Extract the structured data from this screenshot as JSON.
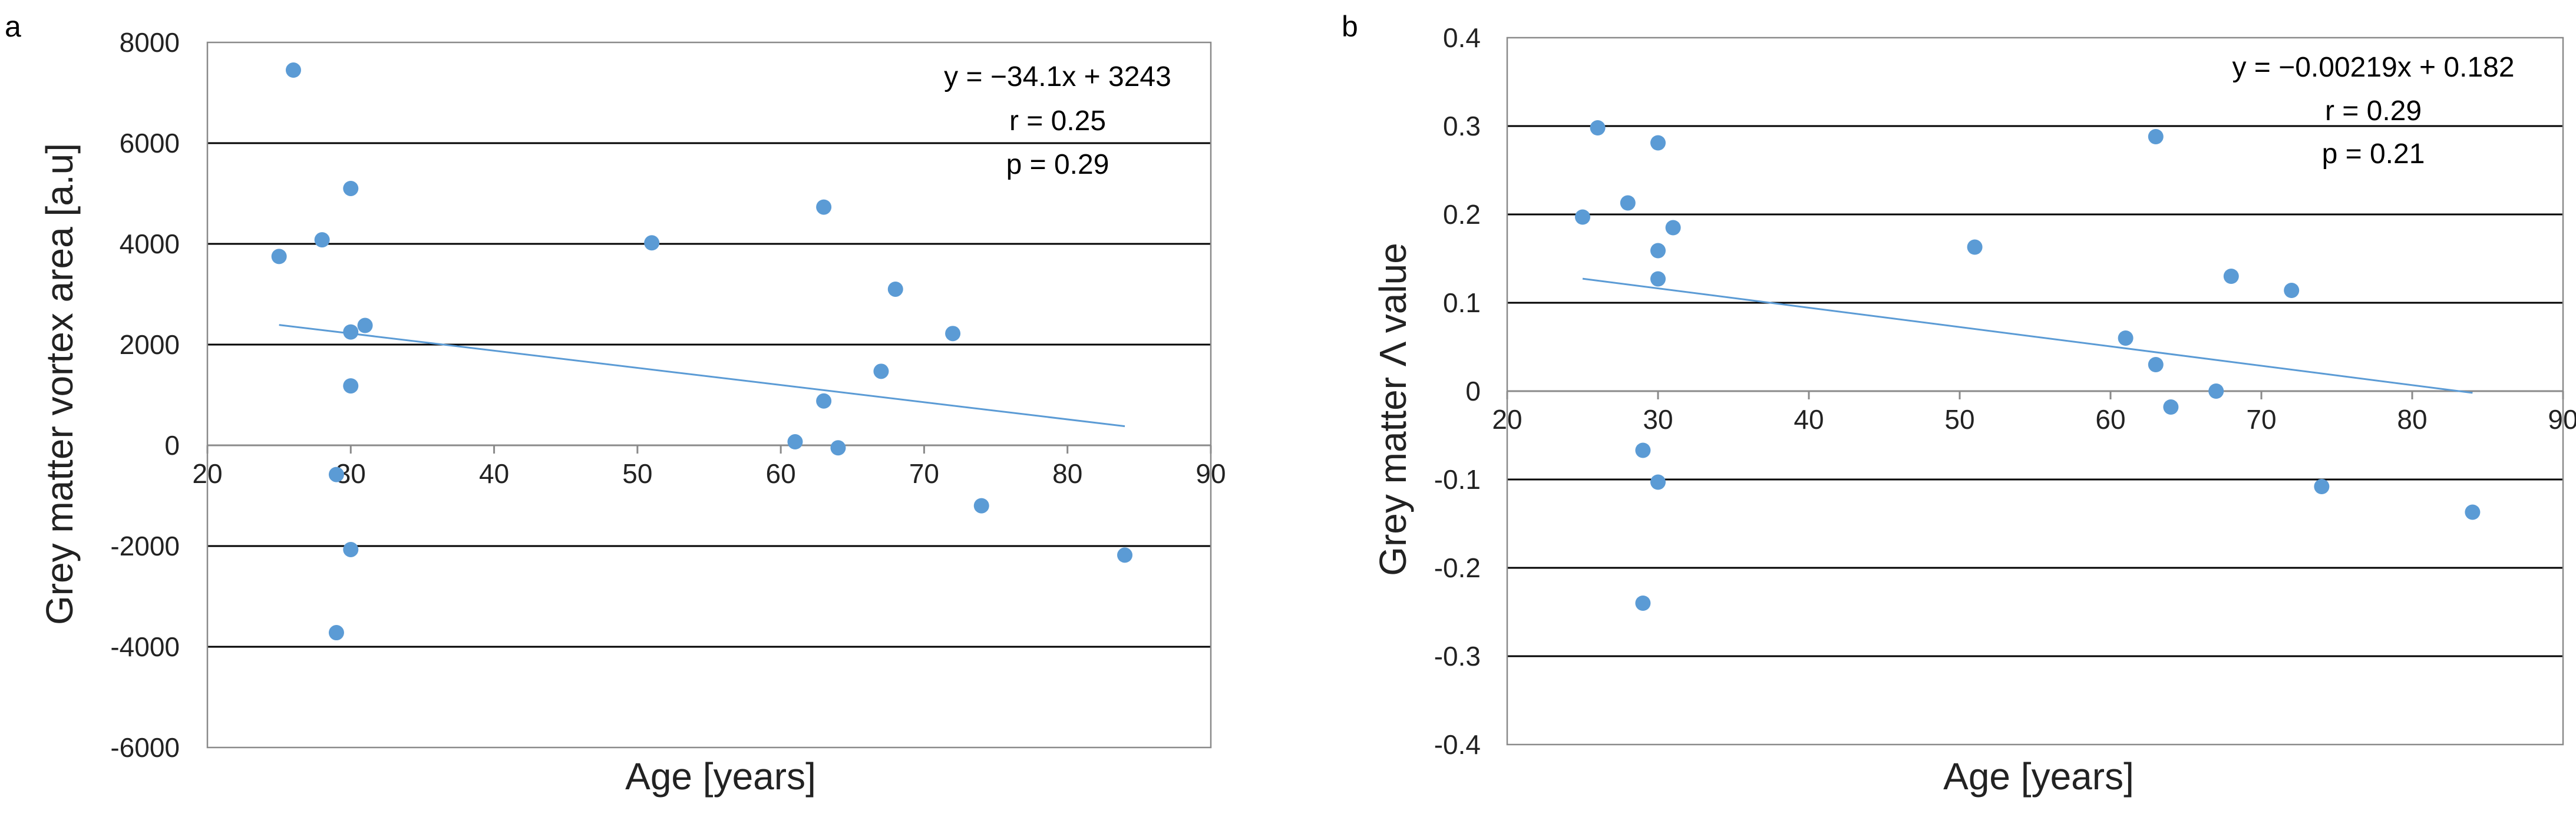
{
  "chart_data": [
    {
      "panel_label": "a",
      "type": "scatter",
      "xlabel": "Age [years]",
      "ylabel": "Grey matter vortex area [a.u]",
      "xlim": [
        20,
        90
      ],
      "ylim": [
        -6000,
        8000
      ],
      "x_ticks": [
        20,
        30,
        40,
        50,
        60,
        70,
        80,
        90
      ],
      "y_ticks": [
        -6000,
        -4000,
        -2000,
        0,
        2000,
        4000,
        6000,
        8000
      ],
      "gridlines": "horizontal",
      "points": {
        "x": [
          25,
          26,
          28,
          30,
          30,
          31,
          30,
          29,
          30,
          29,
          51,
          63,
          63,
          61,
          64,
          67,
          68,
          72,
          74,
          84
        ],
        "y": [
          3750,
          7450,
          4080,
          5100,
          2250,
          2380,
          1180,
          -580,
          -2070,
          -3720,
          4020,
          4730,
          880,
          70,
          -50,
          1470,
          3100,
          2220,
          -1200,
          -2180
        ]
      },
      "trendline": {
        "slope": -34.1,
        "intercept": 3243,
        "x_range": [
          25,
          84
        ]
      },
      "annotations": [
        "y = −34.1x + 3243",
        "r = 0.25",
        "p = 0.29"
      ]
    },
    {
      "panel_label": "b",
      "type": "scatter",
      "xlabel": "Age [years]",
      "ylabel": "Grey matter Λ value",
      "xlim": [
        20,
        90
      ],
      "ylim": [
        -0.4,
        0.4
      ],
      "x_ticks": [
        20,
        30,
        40,
        50,
        60,
        70,
        80,
        90
      ],
      "y_ticks": [
        -0.4,
        -0.3,
        -0.2,
        -0.1,
        0,
        0.1,
        0.2,
        0.3,
        0.4
      ],
      "gridlines": "horizontal",
      "points": {
        "x": [
          25,
          26,
          28,
          30,
          31,
          30,
          30,
          29,
          30,
          29,
          51,
          63,
          61,
          63,
          64,
          67,
          68,
          72,
          74,
          84
        ],
        "y": [
          0.197,
          0.298,
          0.213,
          0.281,
          0.185,
          0.159,
          0.127,
          -0.067,
          -0.103,
          -0.24,
          0.163,
          0.288,
          0.06,
          0.03,
          -0.018,
          0.0,
          0.13,
          0.114,
          -0.108,
          -0.137
        ]
      },
      "trendline": {
        "slope": -0.00219,
        "intercept": 0.182,
        "x_range": [
          25,
          84
        ]
      },
      "annotations": [
        "y = −0.00219x + 0.182",
        "r = 0.29",
        "p = 0.21"
      ]
    }
  ],
  "colors": {
    "marker": "#5b9bd5",
    "trendline": "#5b9bd5",
    "gridline": "#000000",
    "frame": "#8a8a8a"
  }
}
